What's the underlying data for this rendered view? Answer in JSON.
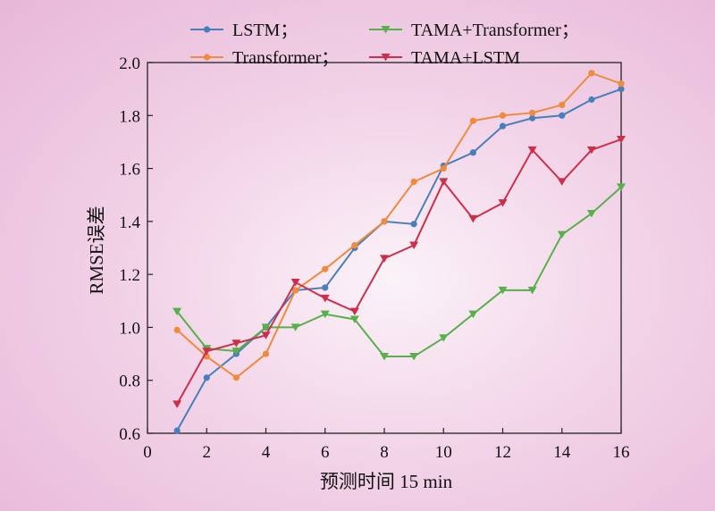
{
  "chart_data": {
    "type": "line",
    "xlabel": "预测时间 15 min",
    "ylabel": "RMSE误差",
    "xlim": [
      0,
      16
    ],
    "ylim": [
      0.6,
      2.0
    ],
    "xticks": [
      "0",
      "2",
      "4",
      "6",
      "8",
      "10",
      "12",
      "14",
      "16"
    ],
    "yticks": [
      "0.6",
      "0.8",
      "1.0",
      "1.2",
      "1.4",
      "1.6",
      "1.8",
      "2.0"
    ],
    "grid": false,
    "legend_placement": "top",
    "x": [
      1,
      2,
      3,
      4,
      5,
      6,
      7,
      8,
      9,
      10,
      11,
      12,
      13,
      14,
      15,
      16
    ],
    "series": [
      {
        "name": "LSTM；",
        "color": "#4a7ebb",
        "marker": "circle",
        "values": [
          0.61,
          0.81,
          0.9,
          1.0,
          1.14,
          1.15,
          1.3,
          1.4,
          1.39,
          1.61,
          1.66,
          1.76,
          1.79,
          1.8,
          1.86,
          1.9
        ]
      },
      {
        "name": "Transformer；",
        "color": "#f08a3c",
        "marker": "circle",
        "values": [
          0.99,
          0.89,
          0.81,
          0.9,
          1.14,
          1.22,
          1.31,
          1.4,
          1.55,
          1.6,
          1.78,
          1.8,
          1.81,
          1.84,
          1.96,
          1.92
        ]
      },
      {
        "name": "TAMA+Transformer；",
        "color": "#57b04a",
        "marker": "triangle-down",
        "values": [
          1.06,
          0.92,
          0.91,
          1.0,
          1.0,
          1.05,
          1.03,
          0.89,
          0.89,
          0.96,
          1.05,
          1.14,
          1.14,
          1.35,
          1.43,
          1.53
        ]
      },
      {
        "name": "TAMA+LSTM",
        "color": "#cc2f4a",
        "marker": "triangle-down",
        "values": [
          0.71,
          0.91,
          0.94,
          0.97,
          1.17,
          1.11,
          1.06,
          1.26,
          1.31,
          1.55,
          1.41,
          1.47,
          1.67,
          1.55,
          1.67,
          1.71
        ]
      }
    ]
  }
}
